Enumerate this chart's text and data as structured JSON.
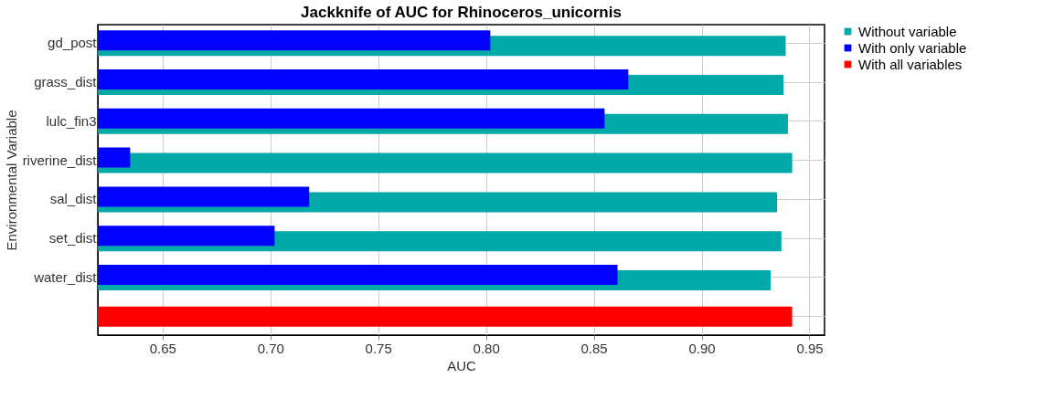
{
  "chart_data": {
    "type": "bar",
    "orientation": "horizontal",
    "title": "Jackknife of AUC for Rhinoceros_unicornis",
    "xlabel": "AUC",
    "ylabel": "Environmental Variable",
    "categories": [
      "gd_post",
      "grass_dist",
      "lulc_fin3",
      "riverine_dist",
      "sal_dist",
      "set_dist",
      "water_dist",
      null
    ],
    "series": [
      {
        "name": "Without variable",
        "color": "#00a8a8",
        "values": [
          0.939,
          0.938,
          0.94,
          0.942,
          0.935,
          0.937,
          0.932,
          null
        ]
      },
      {
        "name": "With only variable",
        "color": "#0000ff",
        "values": [
          0.802,
          0.866,
          0.855,
          0.635,
          0.718,
          0.702,
          0.861,
          null
        ]
      },
      {
        "name": "With all variables",
        "color": "#ff0000",
        "values": [
          null,
          null,
          null,
          null,
          null,
          null,
          null,
          0.942
        ]
      }
    ],
    "xlim": [
      0.62,
      0.957
    ],
    "xticks": [
      0.65,
      {
        "value": 0.7,
        "label": "0.70"
      },
      0.75,
      {
        "value": 0.8,
        "label": "0.80"
      },
      0.85,
      {
        "value": 0.9,
        "label": "0.90"
      },
      0.95
    ],
    "grid": true,
    "legend": "top right"
  }
}
